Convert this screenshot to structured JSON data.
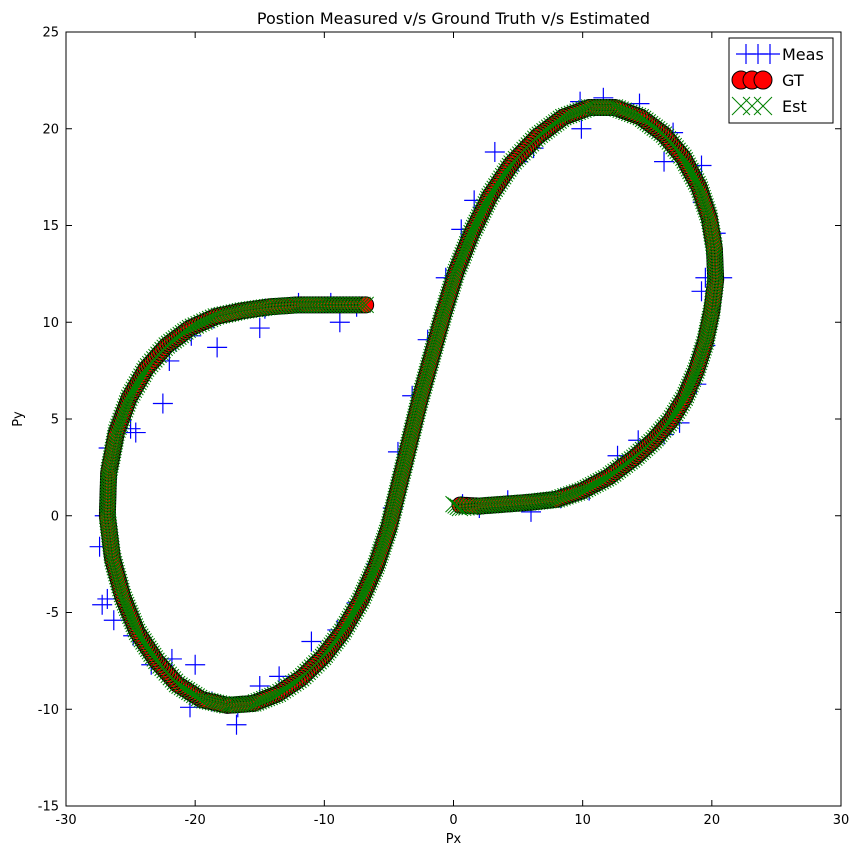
{
  "chart_data": {
    "type": "scatter",
    "title": "Postion Measured v/s Ground Truth v/s Estimated",
    "xlabel": "Px",
    "ylabel": "Py",
    "xlim": [
      -30,
      30
    ],
    "ylim": [
      -15,
      25
    ],
    "xticks": [
      -30,
      -20,
      -10,
      0,
      10,
      20,
      30
    ],
    "yticks": [
      -15,
      -10,
      -5,
      0,
      5,
      10,
      15,
      20,
      25
    ],
    "grid": false,
    "legend_position": "top-right",
    "series": [
      {
        "name": "Meas",
        "marker": "plus",
        "color": "#0000ff",
        "points": [
          [
            0.7,
            0.6
          ],
          [
            2.0,
            0.4
          ],
          [
            4.2,
            0.8
          ],
          [
            6.0,
            0.2
          ],
          [
            8.3,
            0.9
          ],
          [
            10.5,
            1.3
          ],
          [
            12.7,
            3.1
          ],
          [
            14.3,
            3.9
          ],
          [
            16.3,
            4.2
          ],
          [
            17.5,
            4.8
          ],
          [
            18.8,
            6.8
          ],
          [
            19.5,
            8.8
          ],
          [
            19.2,
            11.6
          ],
          [
            19.5,
            12.3
          ],
          [
            20.8,
            12.3
          ],
          [
            20.3,
            14.6
          ],
          [
            19.3,
            16.2
          ],
          [
            19.2,
            18.1
          ],
          [
            16.3,
            18.3
          ],
          [
            17.0,
            19.8
          ],
          [
            14.4,
            21.3
          ],
          [
            11.6,
            21.6
          ],
          [
            9.8,
            21.4
          ],
          [
            9.9,
            20.0
          ],
          [
            6.2,
            19.0
          ],
          [
            5.0,
            18.3
          ],
          [
            3.2,
            18.8
          ],
          [
            1.6,
            16.3
          ],
          [
            0.6,
            14.8
          ],
          [
            -0.6,
            12.3
          ],
          [
            -2.0,
            9.1
          ],
          [
            -3.2,
            6.2
          ],
          [
            -4.3,
            3.3
          ],
          [
            -4.7,
            0.4
          ],
          [
            -6.0,
            -2.5
          ],
          [
            -7.5,
            -4.5
          ],
          [
            -9.0,
            -5.9
          ],
          [
            -11.0,
            -6.5
          ],
          [
            -13.5,
            -8.3
          ],
          [
            -15.0,
            -8.8
          ],
          [
            -16.7,
            -9.9
          ],
          [
            -16.8,
            -10.8
          ],
          [
            -18.7,
            -9.6
          ],
          [
            -20.0,
            -7.7
          ],
          [
            -21.8,
            -7.4
          ],
          [
            -20.4,
            -9.9
          ],
          [
            -23.4,
            -7.7
          ],
          [
            -24.8,
            -6.2
          ],
          [
            -26.3,
            -5.4
          ],
          [
            -26.8,
            -4.3
          ],
          [
            -27.2,
            -4.6
          ],
          [
            -27.4,
            -1.6
          ],
          [
            -27.0,
            0.0
          ],
          [
            -26.7,
            3.5
          ],
          [
            -25.0,
            4.5
          ],
          [
            -24.6,
            4.3
          ],
          [
            -22.5,
            5.8
          ],
          [
            -22.0,
            8.0
          ],
          [
            -21.5,
            9.0
          ],
          [
            -20.3,
            9.3
          ],
          [
            -18.3,
            8.7
          ],
          [
            -18.6,
            10.2
          ],
          [
            -15.0,
            9.7
          ],
          [
            -14.6,
            10.7
          ],
          [
            -12.0,
            11.0
          ],
          [
            -9.5,
            11.0
          ],
          [
            -8.8,
            10.0
          ],
          [
            -7.5,
            10.8
          ]
        ]
      },
      {
        "name": "GT",
        "marker": "circle",
        "color": "#ff0000",
        "points": [
          [
            0.5,
            0.55
          ],
          [
            2.0,
            0.5
          ],
          [
            4.0,
            0.6
          ],
          [
            6.0,
            0.7
          ],
          [
            8.0,
            0.85
          ],
          [
            10.0,
            1.3
          ],
          [
            12.0,
            2.0
          ],
          [
            14.0,
            3.0
          ],
          [
            15.5,
            3.9
          ],
          [
            16.8,
            4.9
          ],
          [
            17.9,
            6.1
          ],
          [
            18.8,
            7.5
          ],
          [
            19.5,
            9.0
          ],
          [
            20.0,
            10.6
          ],
          [
            20.3,
            12.2
          ],
          [
            20.2,
            13.8
          ],
          [
            19.8,
            15.4
          ],
          [
            19.0,
            17.0
          ],
          [
            17.8,
            18.5
          ],
          [
            16.3,
            19.7
          ],
          [
            14.5,
            20.6
          ],
          [
            12.5,
            21.1
          ],
          [
            10.5,
            21.1
          ],
          [
            8.5,
            20.6
          ],
          [
            6.5,
            19.6
          ],
          [
            4.5,
            18.2
          ],
          [
            2.8,
            16.5
          ],
          [
            1.4,
            14.6
          ],
          [
            0.2,
            12.6
          ],
          [
            -0.8,
            10.4
          ],
          [
            -1.7,
            8.2
          ],
          [
            -2.6,
            6.0
          ],
          [
            -3.4,
            3.8
          ],
          [
            -4.2,
            1.6
          ],
          [
            -5.0,
            -0.6
          ],
          [
            -6.0,
            -2.6
          ],
          [
            -7.2,
            -4.4
          ],
          [
            -8.6,
            -6.0
          ],
          [
            -10.1,
            -7.3
          ],
          [
            -11.8,
            -8.4
          ],
          [
            -13.6,
            -9.2
          ],
          [
            -15.5,
            -9.7
          ],
          [
            -17.5,
            -9.8
          ],
          [
            -19.5,
            -9.5
          ],
          [
            -21.4,
            -8.7
          ],
          [
            -23.0,
            -7.5
          ],
          [
            -24.5,
            -6.0
          ],
          [
            -25.6,
            -4.2
          ],
          [
            -26.4,
            -2.2
          ],
          [
            -26.8,
            0.0
          ],
          [
            -26.7,
            2.2
          ],
          [
            -26.1,
            4.3
          ],
          [
            -25.1,
            6.1
          ],
          [
            -23.8,
            7.6
          ],
          [
            -22.2,
            8.8
          ],
          [
            -20.4,
            9.7
          ],
          [
            -18.4,
            10.3
          ],
          [
            -16.3,
            10.6
          ],
          [
            -14.2,
            10.8
          ],
          [
            -12.0,
            10.9
          ],
          [
            -10.0,
            10.9
          ],
          [
            -8.3,
            10.9
          ],
          [
            -6.8,
            10.9
          ]
        ]
      },
      {
        "name": "Est",
        "marker": "x",
        "color": "#008000",
        "points": [
          [
            0.0,
            0.6
          ],
          [
            0.5,
            0.4
          ],
          [
            2.0,
            0.5
          ],
          [
            4.0,
            0.6
          ],
          [
            6.0,
            0.7
          ],
          [
            8.0,
            0.85
          ],
          [
            10.0,
            1.3
          ],
          [
            12.0,
            2.0
          ],
          [
            14.0,
            3.0
          ],
          [
            15.5,
            3.9
          ],
          [
            16.8,
            4.9
          ],
          [
            17.9,
            6.1
          ],
          [
            18.8,
            7.5
          ],
          [
            19.5,
            9.0
          ],
          [
            20.0,
            10.6
          ],
          [
            20.3,
            12.2
          ],
          [
            20.2,
            13.8
          ],
          [
            19.8,
            15.4
          ],
          [
            19.0,
            17.0
          ],
          [
            17.8,
            18.5
          ],
          [
            16.3,
            19.7
          ],
          [
            14.5,
            20.6
          ],
          [
            12.5,
            21.1
          ],
          [
            10.5,
            21.1
          ],
          [
            8.5,
            20.6
          ],
          [
            6.5,
            19.6
          ],
          [
            4.5,
            18.2
          ],
          [
            2.8,
            16.5
          ],
          [
            1.4,
            14.6
          ],
          [
            0.2,
            12.6
          ],
          [
            -0.8,
            10.4
          ],
          [
            -1.7,
            8.2
          ],
          [
            -2.6,
            6.0
          ],
          [
            -3.4,
            3.8
          ],
          [
            -4.2,
            1.6
          ],
          [
            -5.0,
            -0.6
          ],
          [
            -6.0,
            -2.6
          ],
          [
            -7.2,
            -4.4
          ],
          [
            -8.6,
            -6.0
          ],
          [
            -10.1,
            -7.3
          ],
          [
            -11.8,
            -8.4
          ],
          [
            -13.6,
            -9.2
          ],
          [
            -15.5,
            -9.7
          ],
          [
            -17.5,
            -9.8
          ],
          [
            -19.5,
            -9.5
          ],
          [
            -21.4,
            -8.7
          ],
          [
            -23.0,
            -7.5
          ],
          [
            -24.5,
            -6.0
          ],
          [
            -25.6,
            -4.2
          ],
          [
            -26.4,
            -2.2
          ],
          [
            -26.8,
            0.0
          ],
          [
            -26.7,
            2.2
          ],
          [
            -26.1,
            4.3
          ],
          [
            -25.1,
            6.1
          ],
          [
            -23.8,
            7.6
          ],
          [
            -22.2,
            8.8
          ],
          [
            -20.4,
            9.7
          ],
          [
            -18.4,
            10.3
          ],
          [
            -16.3,
            10.6
          ],
          [
            -14.2,
            10.8
          ],
          [
            -12.0,
            10.9
          ],
          [
            -10.0,
            10.9
          ],
          [
            -8.3,
            10.9
          ],
          [
            -6.8,
            10.9
          ]
        ]
      }
    ]
  }
}
